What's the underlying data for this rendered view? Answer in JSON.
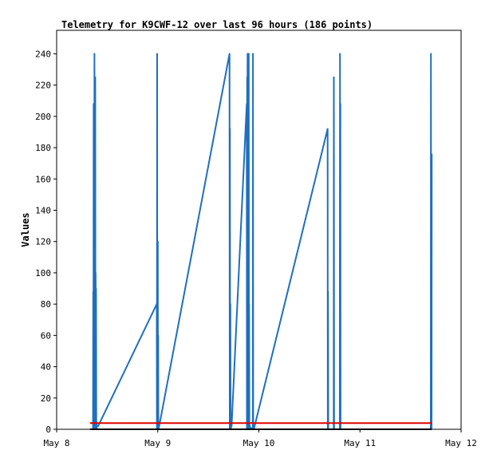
{
  "chart_data": {
    "type": "line",
    "title": "Telemetry for K9CWF-12 over last 96 hours (186 points)",
    "xlabel": "",
    "ylabel": "Values",
    "x_unit": "days",
    "x_axis": {
      "range": [
        0,
        4
      ],
      "ticks": [
        {
          "value": 0,
          "label": "May 8"
        },
        {
          "value": 1,
          "label": "May 9"
        },
        {
          "value": 2,
          "label": "May 10"
        },
        {
          "value": 3,
          "label": "May 11"
        },
        {
          "value": 4,
          "label": "May 12"
        }
      ]
    },
    "y_axis": {
      "range": [
        0,
        255
      ],
      "ticks": [
        0,
        20,
        40,
        60,
        80,
        100,
        120,
        140,
        160,
        180,
        200,
        220,
        240
      ]
    },
    "grid": false,
    "legend": "none",
    "colors": {
      "blue": "#1f6fbf",
      "red": "#e00000",
      "black": "#000000"
    },
    "series": [
      {
        "color": "#1f6fbf",
        "x": [
          0.36,
          0.362,
          0.364,
          0.366,
          0.368,
          0.37,
          0.372,
          0.374,
          0.376,
          0.378,
          0.38,
          0.382,
          0.384,
          0.386,
          0.388,
          0.39,
          0.392,
          0.394,
          0.396,
          0.398,
          0.41,
          0.99,
          0.992,
          0.994,
          0.996,
          0.998,
          1.0,
          1.002,
          1.004,
          1.006,
          1.008,
          1.71,
          1.712,
          1.714,
          1.716,
          1.718,
          1.72,
          1.722,
          1.724,
          1.726,
          1.73,
          1.88,
          1.882,
          1.884,
          1.886,
          1.888,
          1.89,
          1.892,
          1.894,
          1.896,
          1.898,
          1.9,
          1.902,
          1.904,
          1.906,
          1.908,
          1.91,
          1.912,
          1.914,
          1.916,
          1.94,
          1.942,
          1.944,
          1.946,
          1.95,
          2.68,
          2.682,
          2.684,
          2.686,
          2.688,
          2.74,
          2.742,
          2.744,
          2.746,
          2.8,
          2.802,
          2.804,
          2.806,
          2.808,
          3.7,
          3.702,
          3.704,
          3.706,
          3.708,
          3.71
        ],
        "y": [
          0,
          88,
          0,
          208,
          0,
          104,
          0,
          240,
          0,
          140,
          0,
          225,
          0,
          100,
          0,
          90,
          0,
          5,
          0,
          2,
          2,
          80,
          0,
          240,
          0,
          0,
          120,
          0,
          60,
          0,
          0,
          240,
          0,
          192,
          0,
          80,
          0,
          5,
          0,
          2,
          2,
          208,
          0,
          225,
          0,
          240,
          0,
          30,
          0,
          225,
          0,
          240,
          0,
          80,
          0,
          3,
          0,
          2,
          0,
          1,
          0,
          240,
          0,
          2,
          0,
          192,
          0,
          88,
          0,
          0,
          0,
          225,
          0,
          0,
          0,
          240,
          0,
          208,
          0,
          0,
          240,
          0,
          176,
          0,
          176
        ]
      },
      {
        "color": "#e00000",
        "x": [
          0.33,
          3.71
        ],
        "y": [
          4,
          4
        ]
      },
      {
        "color": "#000000",
        "x": [
          0.33,
          3.71
        ],
        "y": [
          0,
          0
        ]
      }
    ]
  }
}
